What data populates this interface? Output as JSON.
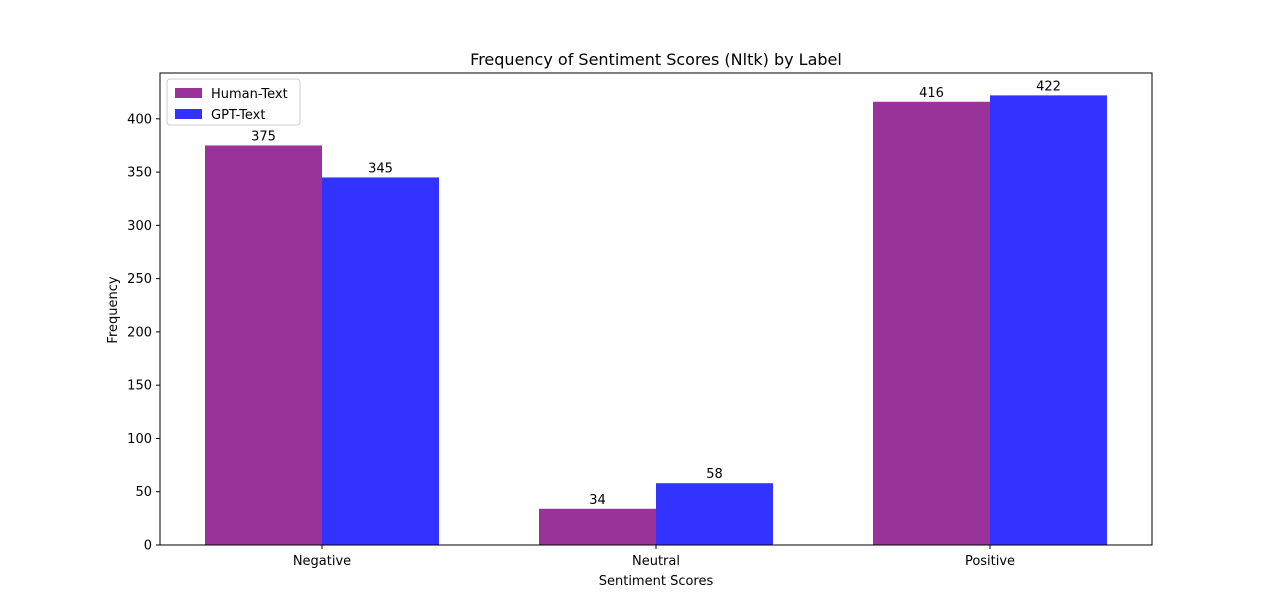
{
  "chart_data": {
    "type": "bar",
    "title": "Frequency of Sentiment Scores (Nltk) by Label",
    "xlabel": "Sentiment Scores",
    "ylabel": "Frequency",
    "categories": [
      "Negative",
      "Neutral",
      "Positive"
    ],
    "series": [
      {
        "name": "Human-Text",
        "color": "#993399",
        "values": [
          375,
          34,
          416
        ]
      },
      {
        "name": "GPT-Text",
        "color": "#3333ff",
        "values": [
          345,
          58,
          422
        ]
      }
    ],
    "ylim": [
      0,
      443
    ],
    "yticks": [
      0,
      50,
      100,
      150,
      200,
      250,
      300,
      350,
      400
    ],
    "grid": false,
    "legend_position": "top-left",
    "data_labels": true
  }
}
